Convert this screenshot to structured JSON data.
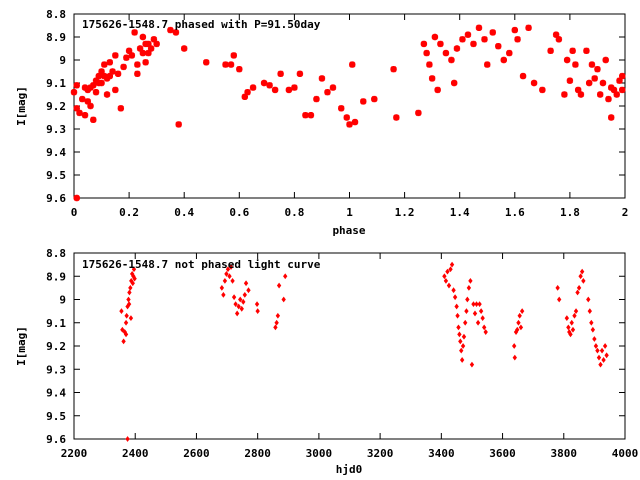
{
  "chart_data": [
    {
      "type": "scatter",
      "title": "175626-1548.7 phased with P=91.50day",
      "xlabel": "phase",
      "ylabel": "I[mag]",
      "xlim": [
        0,
        2
      ],
      "ylim": [
        9.6,
        8.8
      ],
      "y_inverted": true,
      "grid": false,
      "marker_color": "#ff0000",
      "xticks": [
        "0",
        "0.2",
        "0.4",
        "0.6",
        "0.8",
        "1",
        "1.2",
        "1.4",
        "1.6",
        "1.8",
        "2"
      ],
      "yticks": [
        "8.8",
        "8.9",
        "9",
        "9.1",
        "9.2",
        "9.3",
        "9.4",
        "9.5",
        "9.6"
      ],
      "points": [
        [
          0.0,
          9.14
        ],
        [
          0.01,
          9.11
        ],
        [
          0.01,
          9.21
        ],
        [
          0.02,
          9.23
        ],
        [
          0.03,
          9.17
        ],
        [
          0.04,
          9.12
        ],
        [
          0.04,
          9.24
        ],
        [
          0.05,
          9.13
        ],
        [
          0.05,
          9.18
        ],
        [
          0.06,
          9.12
        ],
        [
          0.06,
          9.2
        ],
        [
          0.07,
          9.11
        ],
        [
          0.07,
          9.26
        ],
        [
          0.08,
          9.09
        ],
        [
          0.08,
          9.14
        ],
        [
          0.09,
          9.07
        ],
        [
          0.09,
          9.1
        ],
        [
          0.1,
          9.05
        ],
        [
          0.1,
          9.1
        ],
        [
          0.11,
          9.02
        ],
        [
          0.11,
          9.07
        ],
        [
          0.12,
          9.08
        ],
        [
          0.12,
          9.15
        ],
        [
          0.13,
          9.07
        ],
        [
          0.13,
          9.01
        ],
        [
          0.14,
          9.05
        ],
        [
          0.15,
          8.98
        ],
        [
          0.15,
          9.13
        ],
        [
          0.16,
          9.06
        ],
        [
          0.17,
          9.21
        ],
        [
          0.18,
          9.03
        ],
        [
          0.19,
          8.99
        ],
        [
          0.2,
          8.96
        ],
        [
          0.21,
          8.98
        ],
        [
          0.22,
          8.88
        ],
        [
          0.23,
          9.02
        ],
        [
          0.23,
          9.06
        ],
        [
          0.24,
          8.95
        ],
        [
          0.25,
          8.9
        ],
        [
          0.25,
          8.97
        ],
        [
          0.26,
          8.93
        ],
        [
          0.26,
          9.01
        ],
        [
          0.27,
          8.93
        ],
        [
          0.27,
          8.97
        ],
        [
          0.28,
          8.95
        ],
        [
          0.29,
          8.91
        ],
        [
          0.3,
          8.93
        ],
        [
          0.01,
          9.6
        ],
        [
          0.35,
          8.87
        ],
        [
          0.37,
          8.88
        ],
        [
          0.38,
          9.28
        ],
        [
          0.4,
          8.95
        ],
        [
          0.48,
          9.01
        ],
        [
          0.55,
          9.02
        ],
        [
          0.58,
          8.98
        ],
        [
          0.57,
          9.02
        ],
        [
          0.6,
          9.04
        ],
        [
          0.62,
          9.16
        ],
        [
          0.63,
          9.14
        ],
        [
          0.65,
          9.12
        ],
        [
          0.69,
          9.1
        ],
        [
          0.71,
          9.11
        ],
        [
          0.73,
          9.13
        ],
        [
          0.75,
          9.06
        ],
        [
          0.78,
          9.13
        ],
        [
          0.8,
          9.12
        ],
        [
          0.82,
          9.06
        ],
        [
          0.84,
          9.24
        ],
        [
          0.86,
          9.24
        ],
        [
          0.88,
          9.17
        ],
        [
          0.9,
          9.08
        ],
        [
          0.92,
          9.14
        ],
        [
          0.94,
          9.12
        ],
        [
          0.97,
          9.21
        ],
        [
          0.99,
          9.25
        ],
        [
          1.0,
          9.28
        ],
        [
          1.01,
          9.02
        ],
        [
          1.02,
          9.27
        ],
        [
          1.05,
          9.18
        ],
        [
          1.09,
          9.17
        ],
        [
          1.17,
          9.25
        ],
        [
          1.16,
          9.04
        ],
        [
          1.25,
          9.23
        ],
        [
          1.27,
          8.93
        ],
        [
          1.28,
          8.97
        ],
        [
          1.29,
          9.02
        ],
        [
          1.3,
          9.08
        ],
        [
          1.31,
          8.9
        ],
        [
          1.32,
          9.13
        ],
        [
          1.33,
          8.93
        ],
        [
          1.35,
          8.97
        ],
        [
          1.37,
          9.0
        ],
        [
          1.38,
          9.1
        ],
        [
          1.39,
          8.95
        ],
        [
          1.41,
          8.91
        ],
        [
          1.43,
          8.89
        ],
        [
          1.45,
          8.93
        ],
        [
          1.47,
          8.86
        ],
        [
          1.49,
          8.91
        ],
        [
          1.5,
          9.02
        ],
        [
          1.52,
          8.88
        ],
        [
          1.54,
          8.94
        ],
        [
          1.56,
          9.0
        ],
        [
          1.58,
          8.97
        ],
        [
          1.6,
          8.87
        ],
        [
          1.61,
          8.91
        ],
        [
          1.63,
          9.07
        ],
        [
          1.65,
          8.86
        ],
        [
          1.67,
          9.1
        ],
        [
          1.7,
          9.13
        ],
        [
          1.73,
          8.96
        ],
        [
          1.75,
          8.89
        ],
        [
          1.76,
          8.91
        ],
        [
          1.78,
          9.15
        ],
        [
          1.79,
          9.0
        ],
        [
          1.8,
          9.09
        ],
        [
          1.81,
          8.96
        ],
        [
          1.82,
          9.02
        ],
        [
          1.83,
          9.13
        ],
        [
          1.84,
          9.15
        ],
        [
          1.86,
          8.96
        ],
        [
          1.87,
          9.1
        ],
        [
          1.88,
          9.02
        ],
        [
          1.89,
          9.08
        ],
        [
          1.9,
          9.04
        ],
        [
          1.91,
          9.15
        ],
        [
          1.92,
          9.1
        ],
        [
          1.93,
          9.0
        ],
        [
          1.94,
          9.17
        ],
        [
          1.95,
          9.12
        ],
        [
          1.95,
          9.25
        ],
        [
          1.96,
          9.13
        ],
        [
          1.97,
          9.15
        ],
        [
          1.98,
          9.09
        ],
        [
          1.99,
          9.13
        ],
        [
          1.99,
          9.07
        ]
      ]
    },
    {
      "type": "scatter",
      "title": "175626-1548.7 not phased light curve",
      "xlabel": "hjd0",
      "ylabel": "I[mag]",
      "xlim": [
        2200,
        4000
      ],
      "ylim": [
        9.6,
        8.8
      ],
      "y_inverted": true,
      "grid": false,
      "marker_color": "#ff0000",
      "xticks": [
        "2200",
        "2400",
        "2600",
        "2800",
        "3000",
        "3200",
        "3400",
        "3600",
        "3800",
        "4000"
      ],
      "yticks": [
        "8.8",
        "8.9",
        "9",
        "9.1",
        "9.2",
        "9.3",
        "9.4",
        "9.5",
        "9.6"
      ],
      "points": [
        [
          2355,
          9.05
        ],
        [
          2358,
          9.13
        ],
        [
          2362,
          9.18
        ],
        [
          2366,
          9.14
        ],
        [
          2370,
          9.1
        ],
        [
          2372,
          9.07
        ],
        [
          2375,
          9.03
        ],
        [
          2378,
          9.0
        ],
        [
          2381,
          8.97
        ],
        [
          2384,
          8.95
        ],
        [
          2387,
          8.92
        ],
        [
          2390,
          8.89
        ],
        [
          2392,
          8.93
        ],
        [
          2394,
          8.9
        ],
        [
          2396,
          8.87
        ],
        [
          2398,
          8.91
        ],
        [
          2375,
          9.6
        ],
        [
          2370,
          9.15
        ],
        [
          2380,
          9.02
        ],
        [
          2386,
          9.08
        ],
        [
          2683,
          8.95
        ],
        [
          2688,
          8.98
        ],
        [
          2693,
          8.92
        ],
        [
          2698,
          8.89
        ],
        [
          2703,
          8.87
        ],
        [
          2708,
          8.9
        ],
        [
          2713,
          8.86
        ],
        [
          2718,
          8.92
        ],
        [
          2723,
          8.99
        ],
        [
          2728,
          9.02
        ],
        [
          2733,
          9.06
        ],
        [
          2738,
          9.03
        ],
        [
          2743,
          9.0
        ],
        [
          2748,
          9.04
        ],
        [
          2753,
          9.01
        ],
        [
          2758,
          8.98
        ],
        [
          2762,
          8.93
        ],
        [
          2770,
          8.96
        ],
        [
          2798,
          9.02
        ],
        [
          2800,
          9.05
        ],
        [
          2858,
          9.12
        ],
        [
          2862,
          9.1
        ],
        [
          2866,
          9.07
        ],
        [
          2870,
          8.94
        ],
        [
          2885,
          9.0
        ],
        [
          2890,
          8.9
        ],
        [
          3410,
          8.9
        ],
        [
          3415,
          8.92
        ],
        [
          3420,
          8.88
        ],
        [
          3425,
          8.94
        ],
        [
          3430,
          8.87
        ],
        [
          3435,
          8.85
        ],
        [
          3440,
          8.96
        ],
        [
          3445,
          8.99
        ],
        [
          3450,
          9.03
        ],
        [
          3453,
          9.07
        ],
        [
          3456,
          9.12
        ],
        [
          3459,
          9.15
        ],
        [
          3462,
          9.18
        ],
        [
          3465,
          9.22
        ],
        [
          3468,
          9.26
        ],
        [
          3471,
          9.2
        ],
        [
          3474,
          9.16
        ],
        [
          3478,
          9.1
        ],
        [
          3482,
          9.05
        ],
        [
          3485,
          9.0
        ],
        [
          3490,
          8.95
        ],
        [
          3495,
          8.92
        ],
        [
          3500,
          9.28
        ],
        [
          3505,
          9.02
        ],
        [
          3510,
          9.06
        ],
        [
          3515,
          9.02
        ],
        [
          3520,
          9.1
        ],
        [
          3525,
          9.02
        ],
        [
          3530,
          9.05
        ],
        [
          3535,
          9.08
        ],
        [
          3540,
          9.12
        ],
        [
          3545,
          9.14
        ],
        [
          3638,
          9.2
        ],
        [
          3640,
          9.25
        ],
        [
          3644,
          9.14
        ],
        [
          3648,
          9.13
        ],
        [
          3652,
          9.1
        ],
        [
          3656,
          9.07
        ],
        [
          3660,
          9.12
        ],
        [
          3664,
          9.05
        ],
        [
          3780,
          8.95
        ],
        [
          3785,
          9.0
        ],
        [
          3810,
          9.08
        ],
        [
          3815,
          9.12
        ],
        [
          3818,
          9.14
        ],
        [
          3822,
          9.15
        ],
        [
          3826,
          9.1
        ],
        [
          3830,
          9.13
        ],
        [
          3835,
          9.07
        ],
        [
          3840,
          9.05
        ],
        [
          3845,
          8.97
        ],
        [
          3850,
          8.95
        ],
        [
          3855,
          8.9
        ],
        [
          3860,
          8.88
        ],
        [
          3864,
          8.92
        ],
        [
          3880,
          9.0
        ],
        [
          3885,
          9.05
        ],
        [
          3890,
          9.1
        ],
        [
          3895,
          9.13
        ],
        [
          3900,
          9.17
        ],
        [
          3905,
          9.2
        ],
        [
          3910,
          9.22
        ],
        [
          3915,
          9.25
        ],
        [
          3920,
          9.28
        ],
        [
          3925,
          9.22
        ],
        [
          3930,
          9.26
        ],
        [
          3935,
          9.2
        ],
        [
          3940,
          9.24
        ]
      ]
    }
  ]
}
